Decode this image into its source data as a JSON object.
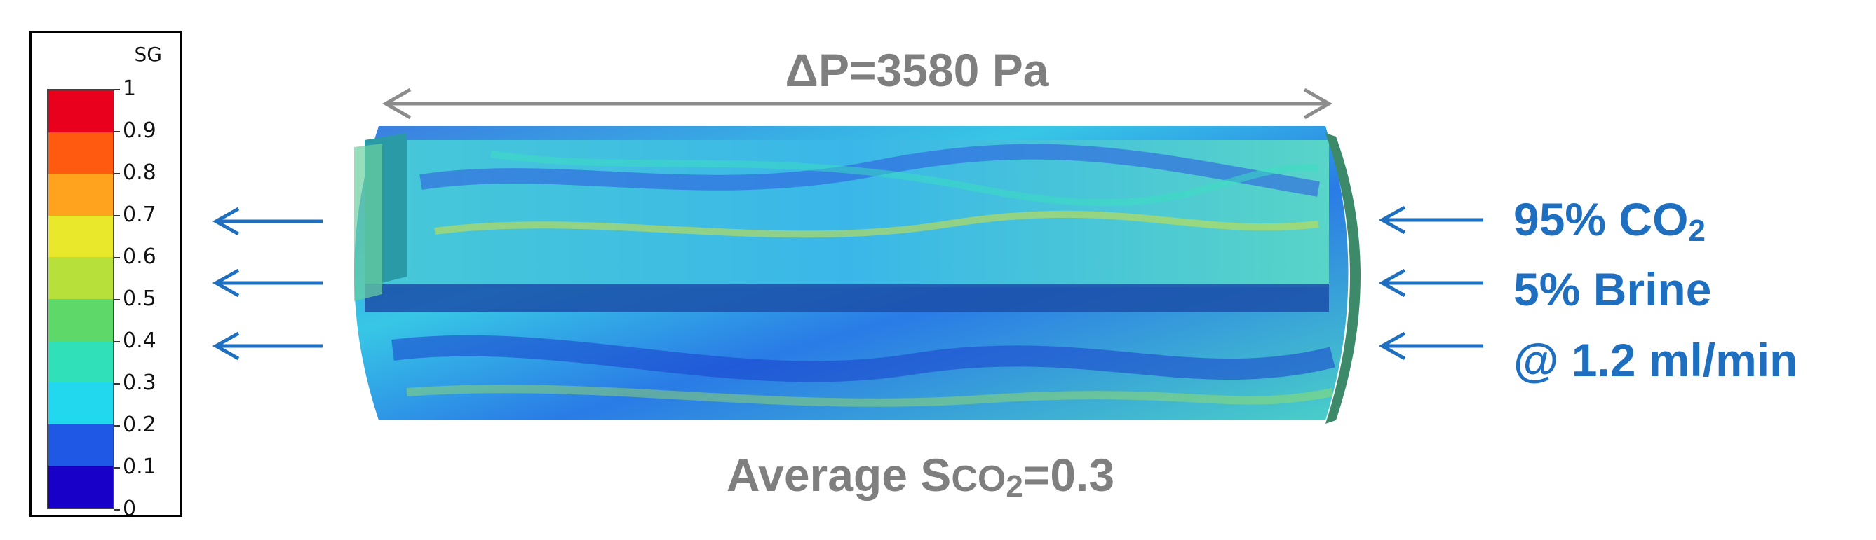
{
  "legend": {
    "title": "SG",
    "ticks": [
      "1",
      "0.9",
      "0.8",
      "0.7",
      "0.6",
      "0.5",
      "0.4",
      "0.3",
      "0.2",
      "0.1",
      "0"
    ],
    "colors": [
      "#e8001c",
      "#ff5a10",
      "#ffa21e",
      "#e9e82a",
      "#b8e03a",
      "#5fd86a",
      "#2fe0b8",
      "#22d8ee",
      "#20a6f2",
      "#2058e6",
      "#1800c8"
    ]
  },
  "header": {
    "pressure_drop": "ΔP=3580 Pa"
  },
  "footer": {
    "prefix": "Average S",
    "co": "CO",
    "sub": "2",
    "suffix": "=0.3"
  },
  "inlet": {
    "line1_prefix": "95% CO",
    "line1_sub": "2",
    "line2": "5% Brine",
    "line3": "@ 1.2 ml/min"
  },
  "colors": {
    "annotation_gray": "#7f7f7f",
    "flow_blue": "#1f6fc0"
  }
}
